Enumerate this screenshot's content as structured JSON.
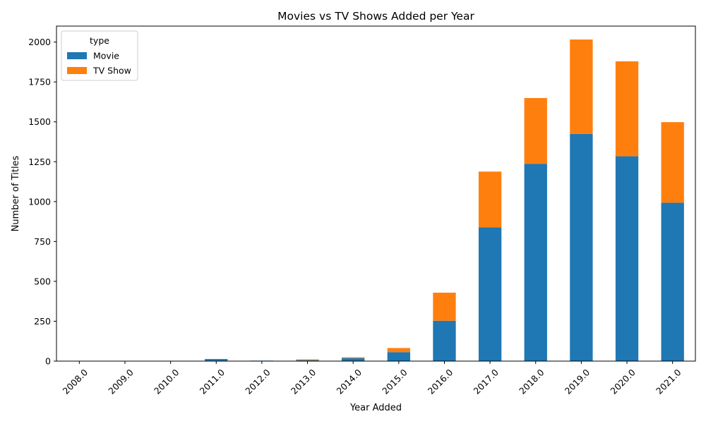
{
  "chart_data": {
    "type": "bar",
    "stacked": true,
    "title": "Movies vs TV Shows Added per Year",
    "xlabel": "Year Added",
    "ylabel": "Number of Titles",
    "categories": [
      "2008.0",
      "2009.0",
      "2010.0",
      "2011.0",
      "2012.0",
      "2013.0",
      "2014.0",
      "2015.0",
      "2016.0",
      "2017.0",
      "2018.0",
      "2019.0",
      "2020.0",
      "2021.0"
    ],
    "series": [
      {
        "name": "Movie",
        "color": "#1f77b4",
        "values": [
          1,
          2,
          1,
          13,
          3,
          6,
          19,
          56,
          253,
          839,
          1237,
          1424,
          1284,
          993
        ]
      },
      {
        "name": "TV Show",
        "color": "#ff7f0e",
        "values": [
          1,
          0,
          0,
          0,
          0,
          5,
          5,
          26,
          176,
          349,
          412,
          592,
          595,
          505
        ]
      }
    ],
    "ylim": [
      0,
      2100
    ],
    "yticks": [
      0,
      250,
      500,
      750,
      1000,
      1250,
      1500,
      1750,
      2000
    ],
    "legend": {
      "title": "type",
      "position": "upper-left"
    },
    "grid": false
  }
}
